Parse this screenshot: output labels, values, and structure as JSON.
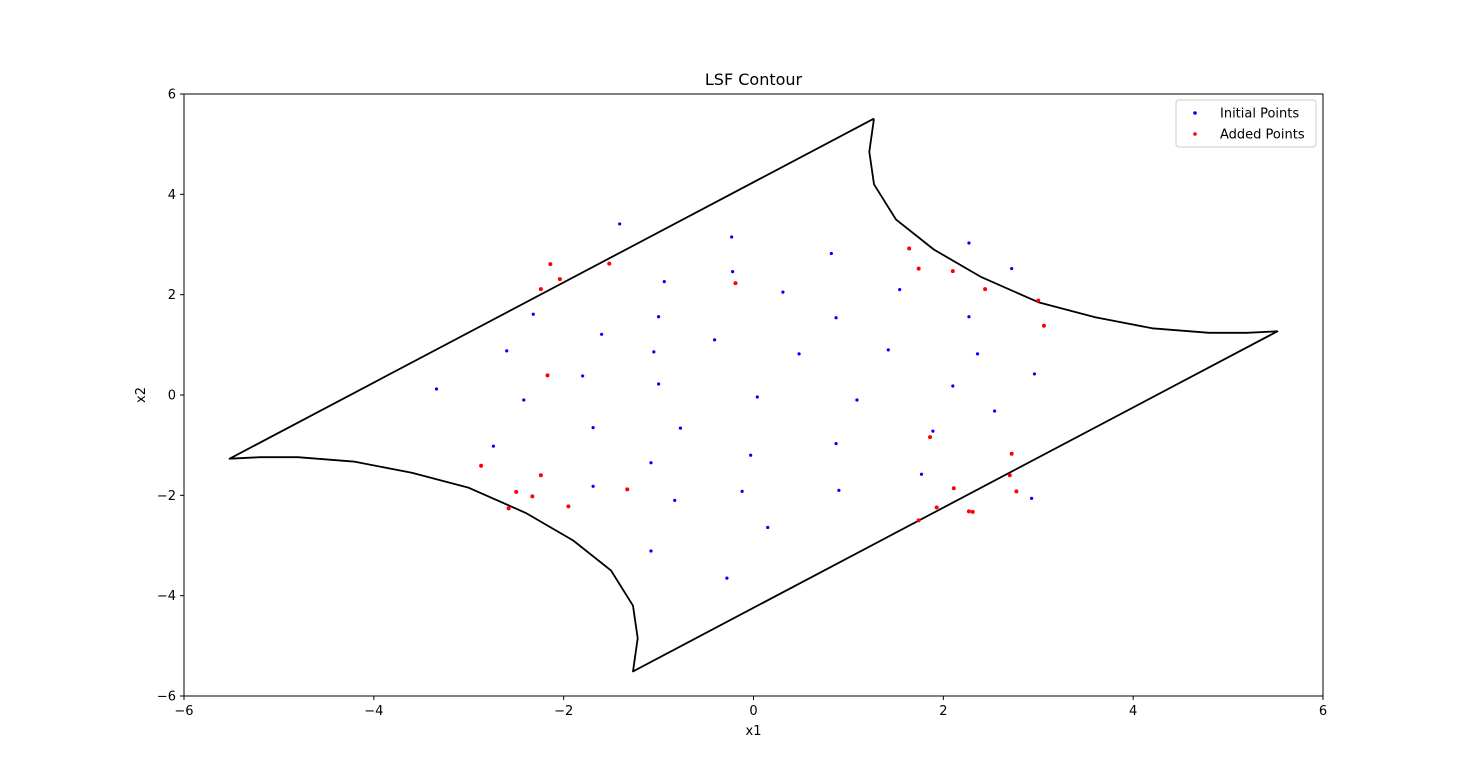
{
  "chart_data": {
    "type": "scatter",
    "title": "LSF Contour",
    "xlabel": "x1",
    "ylabel": "x2",
    "xlim": [
      -6,
      6
    ],
    "ylim": [
      -6,
      6
    ],
    "xticks": [
      -6,
      -4,
      -2,
      0,
      2,
      4,
      6
    ],
    "yticks": [
      -6,
      -4,
      -2,
      0,
      2,
      4,
      6
    ],
    "xtick_labels": [
      "−6",
      "−4",
      "−2",
      "0",
      "2",
      "4",
      "6"
    ],
    "ytick_labels": [
      "−6",
      "−4",
      "−2",
      "0",
      "2",
      "4",
      "6"
    ],
    "grid": false,
    "legend_position": "top-right",
    "contour": {
      "color": "#000000",
      "points": [
        [
          1.27,
          5.51
        ],
        [
          1.22,
          4.85
        ],
        [
          1.27,
          4.2
        ],
        [
          1.5,
          3.5
        ],
        [
          1.9,
          2.9
        ],
        [
          2.4,
          2.35
        ],
        [
          3.0,
          1.85
        ],
        [
          3.6,
          1.55
        ],
        [
          4.2,
          1.33
        ],
        [
          4.8,
          1.24
        ],
        [
          5.2,
          1.24
        ],
        [
          5.52,
          1.27
        ],
        [
          -1.27,
          -5.51
        ],
        [
          -1.22,
          -4.85
        ],
        [
          -1.27,
          -4.2
        ],
        [
          -1.5,
          -3.5
        ],
        [
          -1.9,
          -2.9
        ],
        [
          -2.4,
          -2.35
        ],
        [
          -3.0,
          -1.85
        ],
        [
          -3.6,
          -1.55
        ],
        [
          -4.2,
          -1.33
        ],
        [
          -4.8,
          -1.24
        ],
        [
          -5.2,
          -1.24
        ],
        [
          -5.52,
          -1.27
        ],
        [
          1.27,
          5.51
        ]
      ]
    },
    "series": [
      {
        "name": "Initial Points",
        "color": "#0000ff",
        "x": [
          -1.41,
          -0.23,
          2.27,
          -0.94,
          -0.22,
          0.82,
          2.72,
          0.31,
          1.54,
          -2.32,
          -1.0,
          0.87,
          2.27,
          -1.6,
          -0.41,
          -2.6,
          -1.05,
          1.42,
          0.48,
          2.36,
          -1.8,
          -3.34,
          -1.0,
          2.1,
          2.96,
          -2.42,
          0.04,
          1.09,
          2.54,
          -1.69,
          -0.77,
          1.89,
          -2.74,
          0.87,
          -0.03,
          -1.08,
          1.77,
          -1.69,
          -0.12,
          0.9,
          -0.83,
          2.93,
          0.15,
          -1.08,
          -0.28
        ],
        "y": [
          3.41,
          3.15,
          3.03,
          2.26,
          2.46,
          2.82,
          2.52,
          2.05,
          2.1,
          1.61,
          1.56,
          1.54,
          1.56,
          1.21,
          1.1,
          0.88,
          0.86,
          0.9,
          0.82,
          0.82,
          0.38,
          0.12,
          0.22,
          0.18,
          0.42,
          -0.1,
          -0.04,
          -0.1,
          -0.32,
          -0.65,
          -0.66,
          -0.72,
          -1.02,
          -0.97,
          -1.2,
          -1.35,
          -1.58,
          -1.82,
          -1.92,
          -1.9,
          -2.1,
          -2.06,
          -2.64,
          -3.11,
          -3.65
        ]
      },
      {
        "name": "Added Points",
        "color": "#ff0000",
        "x": [
          -2.14,
          -1.52,
          -2.04,
          -2.24,
          -0.19,
          1.64,
          1.74,
          2.1,
          2.44,
          3.0,
          3.06,
          -2.17,
          1.86,
          2.72,
          -2.87,
          -2.24,
          -2.5,
          -2.33,
          -1.33,
          -1.95,
          -2.58,
          2.11,
          2.7,
          2.77,
          1.93,
          2.27,
          2.31,
          1.74
        ],
        "y": [
          2.61,
          2.62,
          2.31,
          2.11,
          2.23,
          2.92,
          2.52,
          2.47,
          2.11,
          1.88,
          1.38,
          0.39,
          -0.84,
          -1.17,
          -1.41,
          -1.6,
          -1.93,
          -2.02,
          -1.88,
          -2.22,
          -2.26,
          -1.86,
          -1.6,
          -1.92,
          -2.24,
          -2.32,
          -2.33,
          -2.5
        ]
      }
    ]
  }
}
